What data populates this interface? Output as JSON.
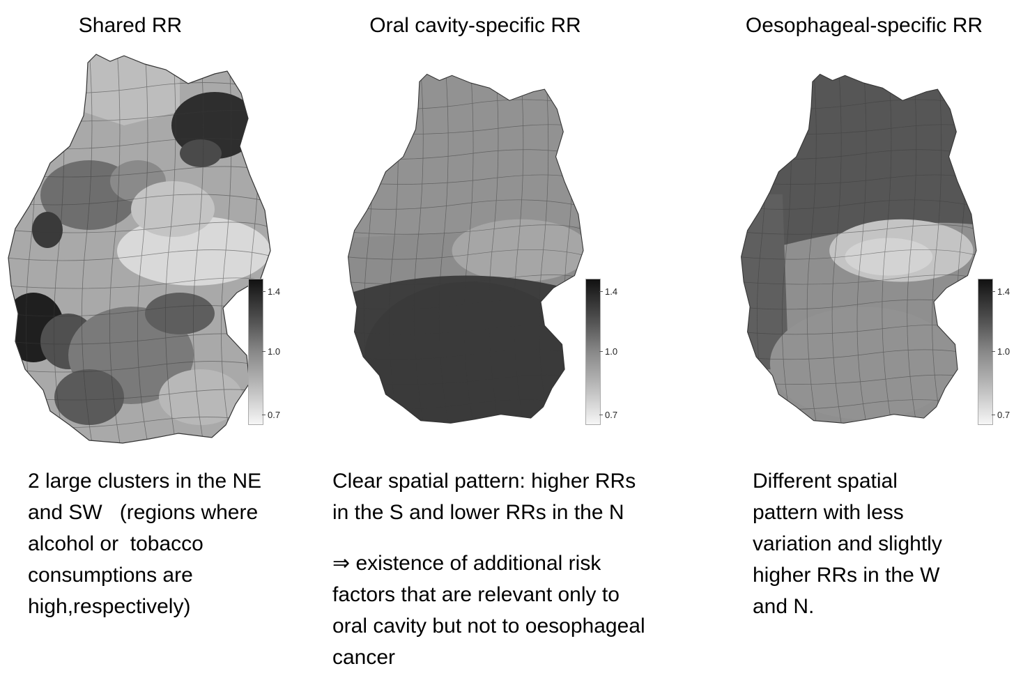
{
  "panels": [
    {
      "title": "Shared RR",
      "legend": {
        "max": "1.4",
        "mid": "1.0",
        "min": "0.7"
      },
      "caption_lines": [
        "2 large clusters in the NE",
        "and SW   (regions where",
        "alcohol or  tobacco",
        "consumptions are",
        "high,respectively)"
      ]
    },
    {
      "title": "Oral cavity-specific RR",
      "legend": {
        "max": "1.4",
        "mid": "1.0",
        "min": "0.7"
      },
      "caption_lines": [
        "Clear spatial pattern: higher RRs",
        "in the S and lower RRs in the N"
      ],
      "caption_lines_2": [
        "⇒ existence of additional risk",
        "factors that are relevant only to",
        "oral cavity but not to oesophageal",
        "cancer"
      ]
    },
    {
      "title": "Oesophageal-specific RR",
      "legend": {
        "max": "1.4",
        "mid": "1.0",
        "min": "0.7"
      },
      "caption_lines": [
        "Different spatial",
        "pattern with less",
        "variation and slightly",
        "higher RRs in the W",
        "and N."
      ]
    }
  ],
  "colors": {
    "map_outline": "#3a3a3a",
    "shade_dark": "#2b2b2b",
    "shade_mid": "#7c7c7c",
    "shade_light": "#c9c9c9",
    "shade_lightest": "#e6e6e6"
  }
}
